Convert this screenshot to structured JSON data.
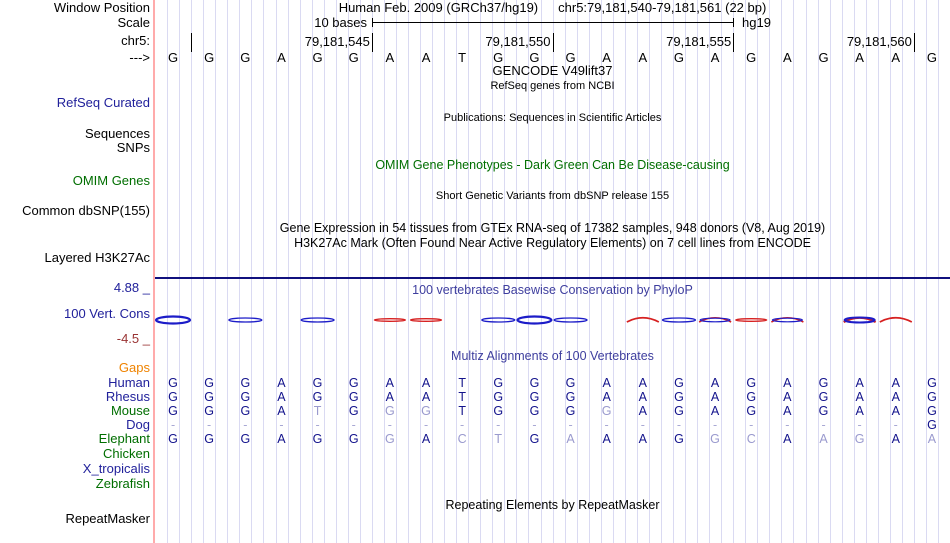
{
  "colors": {
    "black": "#000000",
    "track_blue": "#21219b",
    "track_green": "#006e00",
    "orange": "#ef8300",
    "maroon": "#993333",
    "title_blue": "#3e3e9e",
    "letter_navy": "#13138c",
    "letter_muted": "#9a9ace",
    "dash": "#a8a8d4",
    "wig_blue": "#1c1cc8",
    "wig_red": "#d62020",
    "gridline": "#dadaf2",
    "pink_line": "#ffabab",
    "separator": "#10107e"
  },
  "window": {
    "assembly": "Human Feb. 2009 (GRCh37/hg19)",
    "position": "chr5:79,181,540-79,181,561 (22 bp)",
    "scale_value": "10 bases",
    "genome": "hg19",
    "ruler_labels": [
      "79,181,545",
      "79,181,550",
      "79,181,555",
      "79,181,560"
    ],
    "base_sequence": "GGGAGGAATGGGAAGAGAGAAG"
  },
  "left_labels": [
    {
      "id": "window-position",
      "text": "Window Position",
      "color": "black"
    },
    {
      "id": "scale",
      "text": "Scale",
      "color": "black"
    },
    {
      "id": "chrom",
      "text": "chr5:",
      "color": "black"
    },
    {
      "id": "strand",
      "text": "--->",
      "color": "black"
    },
    {
      "id": "refseq-curated",
      "text": "RefSeq Curated",
      "color": "track_blue"
    },
    {
      "id": "sequences",
      "text": "Sequences",
      "color": "black"
    },
    {
      "id": "snps",
      "text": "SNPs",
      "color": "black"
    },
    {
      "id": "omim-genes",
      "text": "OMIM Genes",
      "color": "track_green"
    },
    {
      "id": "common-dbsnp",
      "text": "Common dbSNP(155)",
      "color": "black"
    },
    {
      "id": "layered-h3k27ac",
      "text": "Layered H3K27Ac",
      "color": "black"
    },
    {
      "id": "cons-max",
      "text": "4.88 _",
      "color": "track_blue"
    },
    {
      "id": "vert-cons",
      "text": "100 Vert. Cons",
      "color": "track_blue"
    },
    {
      "id": "cons-min",
      "text": "-4.5 _",
      "color": "maroon"
    },
    {
      "id": "gaps",
      "text": "Gaps",
      "color": "orange"
    },
    {
      "id": "human",
      "text": "Human",
      "color": "track_blue"
    },
    {
      "id": "rhesus",
      "text": "Rhesus",
      "color": "track_blue"
    },
    {
      "id": "mouse",
      "text": "Mouse",
      "color": "track_green"
    },
    {
      "id": "dog",
      "text": "Dog",
      "color": "track_blue"
    },
    {
      "id": "elephant",
      "text": "Elephant",
      "color": "track_green"
    },
    {
      "id": "chicken",
      "text": "Chicken",
      "color": "track_green"
    },
    {
      "id": "x-tropicalis",
      "text": "X_tropicalis",
      "color": "track_blue"
    },
    {
      "id": "zebrafish",
      "text": "Zebrafish",
      "color": "track_green"
    },
    {
      "id": "repeatmasker",
      "text": "RepeatMasker",
      "color": "black"
    }
  ],
  "center_titles": [
    {
      "id": "gencode-title",
      "text": "GENCODE V49lift37",
      "color": "black"
    },
    {
      "id": "gencode-sub",
      "text": "RefSeq genes from NCBI",
      "color": "black"
    },
    {
      "id": "publications",
      "text": "Publications: Sequences in Scientific Articles",
      "color": "black"
    },
    {
      "id": "omim",
      "text": "OMIM Gene Phenotypes - Dark Green Can Be Disease-causing",
      "color": "track_green"
    },
    {
      "id": "dbsnp",
      "text": "Short Genetic Variants from dbSNP release 155",
      "color": "black"
    },
    {
      "id": "gtex",
      "text": "Gene Expression in 54 tissues from GTEx RNA-seq of 17382 samples, 948 donors (V8, Aug 2019)",
      "color": "black"
    },
    {
      "id": "h3k27ac",
      "text": "H3K27Ac Mark (Often Found Near Active Regulatory Elements) on 7 cell lines from ENCODE",
      "color": "black"
    },
    {
      "id": "phylop",
      "text": "100 vertebrates Basewise Conservation by PhyloP",
      "color": "title_blue"
    },
    {
      "id": "multiz",
      "text": "Multiz Alignments of 100 Vertebrates",
      "color": "title_blue"
    },
    {
      "id": "repeats",
      "text": "Repeating Elements by RepeatMasker",
      "color": "black"
    }
  ],
  "conservation": {
    "axis_max": "4.88",
    "axis_min": "-4.5",
    "marks": [
      {
        "col": 1,
        "style": "blue_thick"
      },
      {
        "col": 3,
        "style": "blue"
      },
      {
        "col": 5,
        "style": "blue"
      },
      {
        "col": 7,
        "style": "red"
      },
      {
        "col": 8,
        "style": "red"
      },
      {
        "col": 10,
        "style": "blue"
      },
      {
        "col": 11,
        "style": "blue_thick"
      },
      {
        "col": 12,
        "style": "blue"
      },
      {
        "col": 14,
        "style": "red_arc"
      },
      {
        "col": 15,
        "style": "blue"
      },
      {
        "col": 16,
        "style": "red_blue"
      },
      {
        "col": 17,
        "style": "red"
      },
      {
        "col": 18,
        "style": "red_blue"
      },
      {
        "col": 20,
        "style": "red_blue_thick"
      },
      {
        "col": 21,
        "style": "red_arc"
      }
    ]
  },
  "alignment": {
    "rows": [
      {
        "id": "human",
        "seq": "GGGAGGAATGGGAAGAGAGAAG"
      },
      {
        "id": "rhesus",
        "seq": "GGGAGGAATGGGAAGAGAGAAG"
      },
      {
        "id": "mouse",
        "seq": "GGGAtGggTGGGgAGAGAGAAG"
      },
      {
        "id": "dog",
        "seq": "---------------------G"
      },
      {
        "id": "elephant",
        "seq": "GGGAGGgActGaAAGgcAagAa"
      },
      {
        "id": "chicken",
        "seq": ""
      },
      {
        "id": "x-tropicalis",
        "seq": ""
      },
      {
        "id": "zebrafish",
        "seq": ""
      }
    ]
  }
}
